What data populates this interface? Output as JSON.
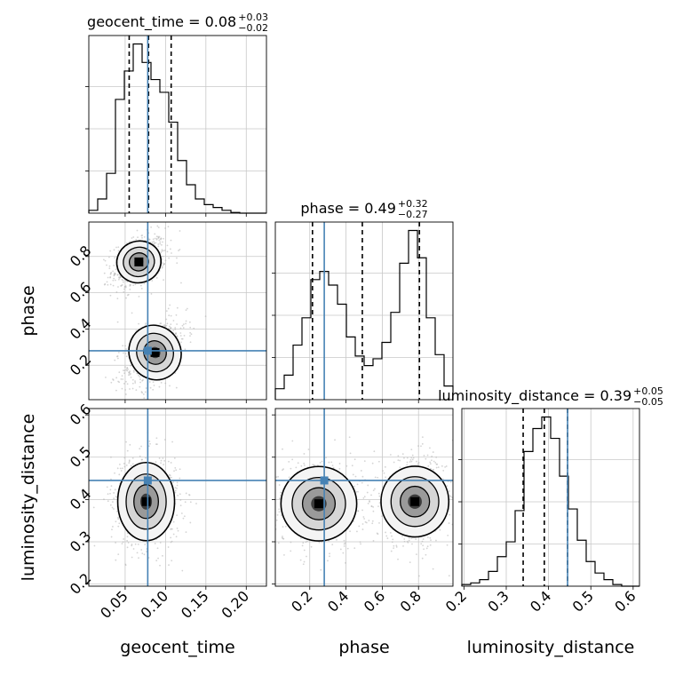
{
  "chart_data": {
    "type": "corner",
    "colors": {
      "truth": "#4682b4",
      "hist": "#000000",
      "grid": "#c8c8c8",
      "scatter": "#b0b0b0"
    },
    "parameters": [
      "geocent_time",
      "phase",
      "luminosity_distance"
    ],
    "axis_labels": {
      "x": [
        "geocent_time",
        "phase",
        "luminosity_distance"
      ],
      "y": [
        "phase",
        "luminosity_distance"
      ]
    },
    "ranges": [
      [
        0.005,
        0.225
      ],
      [
        0.01,
        0.99
      ],
      [
        0.195,
        0.615
      ]
    ],
    "truths": [
      0.078,
      0.28,
      0.445
    ],
    "grid": true,
    "titles": [
      {
        "text": "geocent_time = 0.08",
        "plus": "+0.03",
        "minus": "−0.02"
      },
      {
        "text": "phase = 0.49",
        "plus": "+0.32",
        "minus": "−0.27"
      },
      {
        "text": "luminosity_distance = 0.39",
        "plus": "+0.05",
        "minus": "−0.05"
      }
    ],
    "ticks": {
      "geocent_time": {
        "values": [
          0.05,
          0.1,
          0.15,
          0.2
        ],
        "labels": [
          "0.05",
          "0.10",
          "0.15",
          "0.20"
        ]
      },
      "phase": {
        "values": [
          0.2,
          0.4,
          0.6,
          0.8
        ],
        "labels": [
          "0.2",
          "0.4",
          "0.6",
          "0.8"
        ]
      },
      "luminosity_distance": {
        "values": [
          0.2,
          0.3,
          0.4,
          0.5,
          0.6
        ],
        "labels": [
          "0.2",
          "0.3",
          "0.4",
          "0.5",
          "0.6"
        ]
      }
    },
    "histograms": [
      {
        "param": "geocent_time",
        "quantiles": [
          0.055,
          0.079,
          0.107
        ],
        "edges": [
          0.005,
          0.016,
          0.027,
          0.038,
          0.049,
          0.06,
          0.071,
          0.082,
          0.093,
          0.104,
          0.115,
          0.126,
          0.137,
          0.148,
          0.159,
          0.17,
          0.181,
          0.192,
          0.203,
          0.214,
          0.225
        ],
        "counts": [
          2,
          10,
          28,
          80,
          100,
          119,
          106,
          94,
          85,
          64,
          37,
          20,
          10,
          6,
          4,
          2,
          0.5,
          0,
          0,
          0
        ]
      },
      {
        "param": "phase",
        "quantiles": [
          0.215,
          0.49,
          0.805
        ],
        "edges": [
          0.01,
          0.059,
          0.108,
          0.157,
          0.206,
          0.255,
          0.304,
          0.353,
          0.402,
          0.451,
          0.5,
          0.549,
          0.598,
          0.647,
          0.696,
          0.745,
          0.794,
          0.843,
          0.892,
          0.941,
          0.99
        ],
        "counts": [
          8,
          18,
          40,
          60,
          88,
          94,
          84,
          70,
          46,
          32,
          25,
          30,
          42,
          64,
          100,
          124,
          104,
          60,
          33,
          10
        ]
      },
      {
        "param": "luminosity_distance",
        "quantiles": [
          0.34,
          0.39,
          0.445
        ],
        "edges": [
          0.195,
          0.216,
          0.237,
          0.258,
          0.279,
          0.3,
          0.321,
          0.342,
          0.363,
          0.384,
          0.405,
          0.426,
          0.447,
          0.468,
          0.489,
          0.51,
          0.531,
          0.552,
          0.573,
          0.594,
          0.615
        ],
        "counts": [
          1,
          2,
          4,
          9,
          18,
          27,
          46,
          82,
          96,
          103,
          90,
          67,
          47,
          28,
          15,
          8,
          4,
          1,
          0,
          0
        ]
      }
    ],
    "pairs": [
      {
        "x": "geocent_time",
        "y": "phase",
        "clusters": [
          {
            "cx": 0.067,
            "cy": 0.77,
            "sx": 0.0125,
            "sy": 0.055,
            "rho": 0.35,
            "w": 1.0
          },
          {
            "cx": 0.087,
            "cy": 0.27,
            "sx": 0.0145,
            "sy": 0.075,
            "rho": 0.5,
            "w": 0.95
          }
        ]
      },
      {
        "x": "geocent_time",
        "y": "luminosity_distance",
        "clusters": [
          {
            "cx": 0.076,
            "cy": 0.395,
            "sx": 0.016,
            "sy": 0.042,
            "rho": 0.0,
            "w": 1.0
          }
        ]
      },
      {
        "x": "phase",
        "y": "luminosity_distance",
        "clusters": [
          {
            "cx": 0.25,
            "cy": 0.39,
            "sx": 0.095,
            "sy": 0.04,
            "rho": 0.0,
            "w": 0.85
          },
          {
            "cx": 0.78,
            "cy": 0.395,
            "sx": 0.085,
            "sy": 0.038,
            "rho": 0.0,
            "w": 1.0
          }
        ]
      }
    ]
  }
}
